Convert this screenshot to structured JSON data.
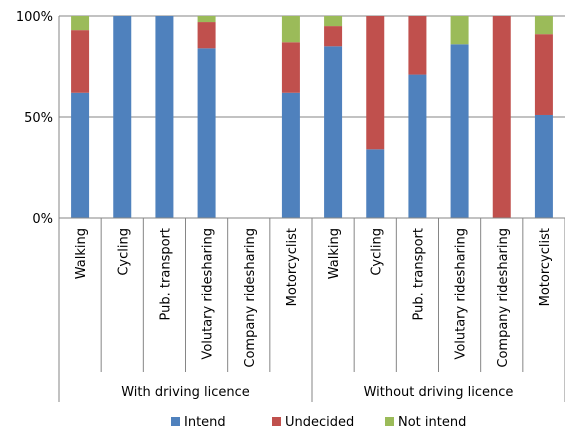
{
  "chart_data": {
    "type": "bar",
    "stacked": true,
    "percent": true,
    "ylim": [
      0,
      100
    ],
    "yticks": [
      {
        "value": 0,
        "label": "0%"
      },
      {
        "value": 50,
        "label": "50%"
      },
      {
        "value": 100,
        "label": "100%"
      }
    ],
    "grid": true,
    "legend_position": "bottom",
    "groups": [
      {
        "label": "With driving licence",
        "start": 0,
        "end": 5
      },
      {
        "label": "Without driving licence",
        "start": 6,
        "end": 11
      }
    ],
    "categories": [
      "Walking",
      "Cycling",
      "Pub. transport",
      "Volutary ridesharing",
      "Company ridesharing",
      "Motorcyclist",
      "Walking",
      "Cycling",
      "Pub. transport",
      "Volutary ridesharing",
      "Company ridesharing",
      "Motorcyclist"
    ],
    "series": [
      {
        "name": "Intend",
        "color": "#4f81bd",
        "values": [
          62,
          100,
          100,
          84,
          0,
          62,
          85,
          34,
          71,
          86,
          0,
          51
        ]
      },
      {
        "name": "Undecided",
        "color": "#c0504d",
        "values": [
          31,
          0,
          0,
          13,
          0,
          25,
          10,
          66,
          29,
          0,
          100,
          40
        ]
      },
      {
        "name": "Not intend",
        "color": "#9bbb59",
        "values": [
          7,
          0,
          0,
          3,
          0,
          13,
          5,
          0,
          0,
          14,
          0,
          9
        ]
      }
    ]
  }
}
